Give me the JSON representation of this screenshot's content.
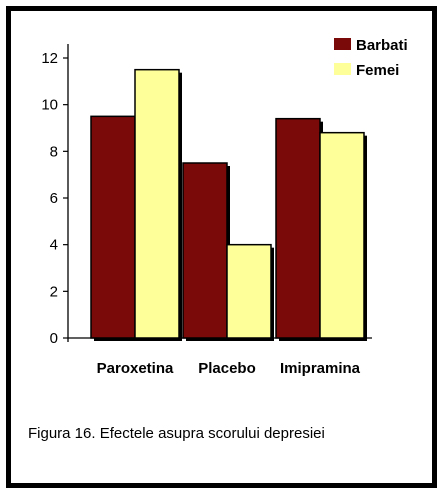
{
  "chart_data": {
    "type": "bar",
    "categories": [
      "Paroxetina",
      "Placebo",
      "Imipramina"
    ],
    "series": [
      {
        "name": "Barbati",
        "values": [
          9.5,
          7.5,
          9.4
        ],
        "color": "#7a0a0a"
      },
      {
        "name": "Femei",
        "values": [
          11.5,
          4.0,
          8.8
        ],
        "color": "#ffff99"
      }
    ],
    "ylim": [
      0,
      12
    ],
    "yticks": [
      0,
      2,
      4,
      6,
      8,
      10,
      12
    ],
    "legend_position": "top-right",
    "grid": false
  },
  "caption": "Figura 16. Efectele asupra scorului depresiei"
}
